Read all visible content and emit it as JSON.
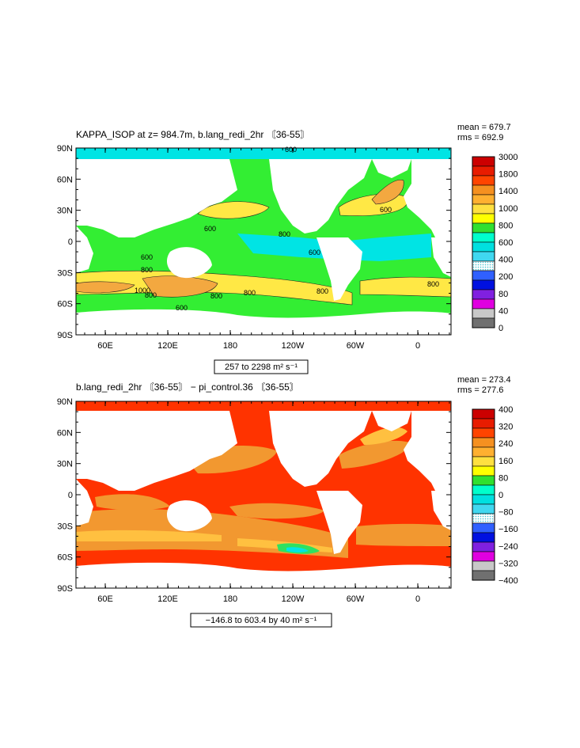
{
  "panels": [
    {
      "title": "KAPPA_ISOP at z= 984.7m, b.lang_redi_2hr 〘36-55〙",
      "mean": "mean = 679.7",
      "rms": "rms  = 692.9",
      "range_label": "257 to 2298 m² s⁻¹",
      "lat_labels": [
        "90N",
        "60N",
        "30N",
        "0",
        "30S",
        "60S",
        "90S"
      ],
      "lon_labels": [
        "60E",
        "120E",
        "180",
        "120W",
        "60W",
        "0"
      ],
      "colorbar": {
        "labels": [
          "3000",
          "1800",
          "1400",
          "1000",
          "800",
          "600",
          "400",
          "200",
          "80",
          "40",
          "0"
        ],
        "colors": [
          "#cc0000",
          "#e81c00",
          "#ff4400",
          "#f59020",
          "#ffb030",
          "#ffe040",
          "#ffff00",
          "#30e030",
          "#00ffcc",
          "#00e0e0",
          "#40d8f0",
          "#00b0f0",
          "#3060ff",
          "#0010e0",
          "#8020e0",
          "#e000e0",
          "#c8c8c8",
          "#707070"
        ]
      },
      "contour_labels": [
        "600",
        "600",
        "600",
        "600",
        "800",
        "800",
        "800",
        "800",
        "800",
        "1000",
        "600",
        "800",
        "800",
        "600"
      ]
    },
    {
      "title": "b.lang_redi_2hr 〘36-55〙 − pi_control.36 〘36-55〙",
      "mean": "mean = 273.4",
      "rms": "rms  = 277.6",
      "range_label": "−146.8 to 603.4 by 40 m² s⁻¹",
      "lat_labels": [
        "90N",
        "60N",
        "30N",
        "0",
        "30S",
        "60S",
        "90S"
      ],
      "lon_labels": [
        "60E",
        "120E",
        "180",
        "120W",
        "60W",
        "0"
      ],
      "colorbar": {
        "labels": [
          "400",
          "320",
          "240",
          "160",
          "80",
          "0",
          "−80",
          "−160",
          "−240",
          "−320",
          "−400"
        ],
        "colors": [
          "#cc0000",
          "#e81c00",
          "#ff4400",
          "#f59020",
          "#ffb030",
          "#ffe040",
          "#ffff00",
          "#30e030",
          "#00ffcc",
          "#00e0e0",
          "#40d8f0",
          "#00b0f0",
          "#3060ff",
          "#0010e0",
          "#8020e0",
          "#e000e0",
          "#c8c8c8",
          "#707070"
        ]
      }
    }
  ],
  "colors": {
    "land": "#ffffff",
    "p1_base": "#33ee33",
    "p1_high": "#ffe845",
    "p1_higher": "#f3a840",
    "p1_low": "#00e4e4",
    "p2_base": "#ff3300",
    "p2_mid": "#f29830",
    "p2_low": "#ffc040",
    "p2_neg": "#30e060"
  }
}
